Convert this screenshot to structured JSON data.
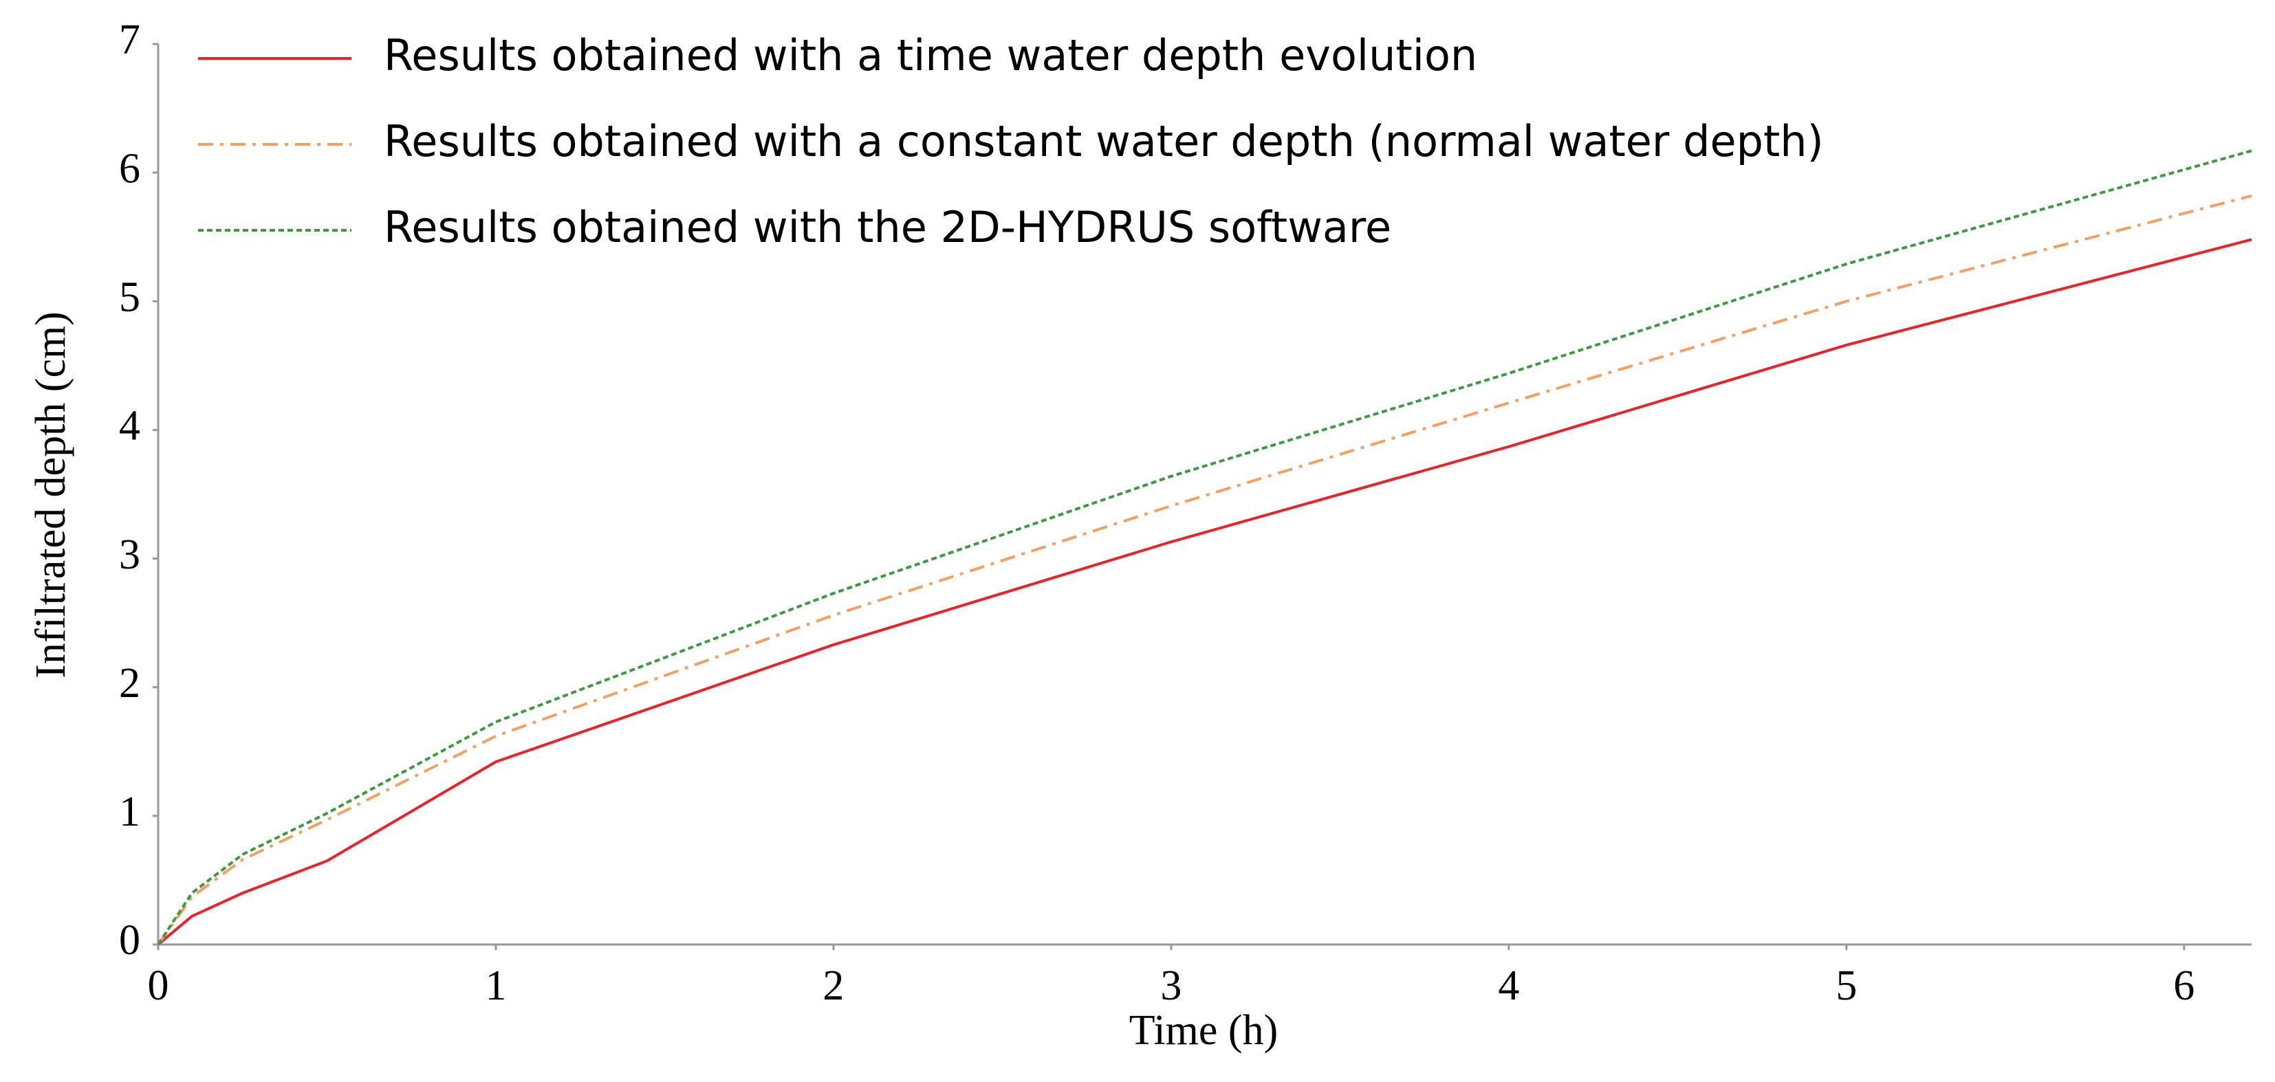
{
  "chart_data": {
    "type": "line",
    "xlabel": "Time (h)",
    "ylabel": "Infiltrated depth (cm)",
    "x": [
      0,
      0.1,
      0.25,
      0.5,
      1,
      2,
      3,
      4,
      5,
      6.2
    ],
    "series": [
      {
        "name": "Results obtained with a time water depth evolution",
        "color": "#e8242a",
        "dash": "solid",
        "values": [
          0,
          0.22,
          0.4,
          0.65,
          1.42,
          2.33,
          3.13,
          3.87,
          4.66,
          5.48
        ]
      },
      {
        "name": "Results obtained with a constant water depth (normal water depth)",
        "color": "#f5a062",
        "dash": "dashdot",
        "values": [
          0,
          0.37,
          0.66,
          0.97,
          1.62,
          2.56,
          3.41,
          4.21,
          5.0,
          5.82
        ]
      },
      {
        "name": "Results obtained with the 2D-HYDRUS software",
        "color": "#3e9a3e",
        "dash": "dotted",
        "values": [
          0,
          0.4,
          0.7,
          1.02,
          1.73,
          2.73,
          3.64,
          4.44,
          5.29,
          6.17
        ]
      }
    ],
    "xlim": [
      0,
      6.2
    ],
    "xticks": [
      0,
      1,
      2,
      3,
      4,
      5,
      6
    ],
    "ylim": [
      0,
      7
    ],
    "yticks": [
      0,
      1,
      2,
      3,
      4,
      5,
      6,
      7
    ],
    "grid": false,
    "legend": "upper left"
  }
}
